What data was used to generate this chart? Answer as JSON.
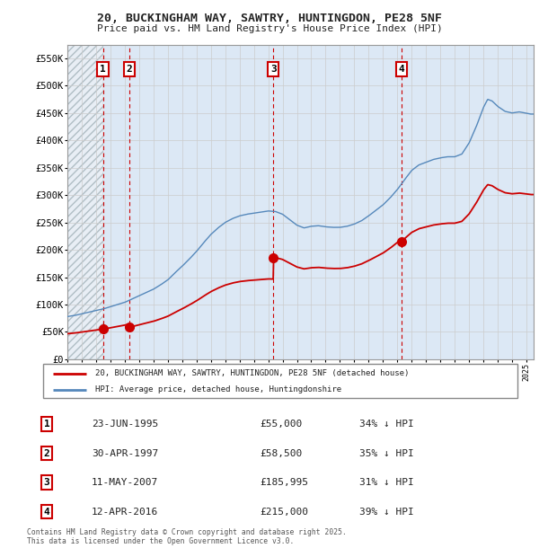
{
  "title1": "20, BUCKINGHAM WAY, SAWTRY, HUNTINGDON, PE28 5NF",
  "title2": "Price paid vs. HM Land Registry's House Price Index (HPI)",
  "ylim": [
    0,
    575000
  ],
  "yticks": [
    0,
    50000,
    100000,
    150000,
    200000,
    250000,
    300000,
    350000,
    400000,
    450000,
    500000,
    550000
  ],
  "ytick_labels": [
    "£0",
    "£50K",
    "£100K",
    "£150K",
    "£200K",
    "£250K",
    "£300K",
    "£350K",
    "£400K",
    "£450K",
    "£500K",
    "£550K"
  ],
  "purchase_dates": [
    1995.478,
    1997.329,
    2007.36,
    2016.278
  ],
  "purchase_prices": [
    55000,
    58500,
    185995,
    215000
  ],
  "purchase_labels": [
    "1",
    "2",
    "3",
    "4"
  ],
  "red_line_color": "#cc0000",
  "blue_line_color": "#5588bb",
  "hatch_fill_color": "#e8eef5",
  "shade_fill_color": "#dce8f5",
  "legend_red_label": "20, BUCKINGHAM WAY, SAWTRY, HUNTINGDON, PE28 5NF (detached house)",
  "legend_blue_label": "HPI: Average price, detached house, Huntingdonshire",
  "table_rows": [
    [
      "1",
      "23-JUN-1995",
      "£55,000",
      "34% ↓ HPI"
    ],
    [
      "2",
      "30-APR-1997",
      "£58,500",
      "35% ↓ HPI"
    ],
    [
      "3",
      "11-MAY-2007",
      "£185,995",
      "31% ↓ HPI"
    ],
    [
      "4",
      "12-APR-2016",
      "£215,000",
      "39% ↓ HPI"
    ]
  ],
  "footnote": "Contains HM Land Registry data © Crown copyright and database right 2025.\nThis data is licensed under the Open Government Licence v3.0.",
  "xmin": 1993.0,
  "xmax": 2025.5,
  "background_color": "#ffffff",
  "hpi_key_years": [
    1993.0,
    1993.5,
    1994.0,
    1994.5,
    1995.0,
    1995.5,
    1996.0,
    1996.5,
    1997.0,
    1997.5,
    1998.0,
    1998.5,
    1999.0,
    1999.5,
    2000.0,
    2000.5,
    2001.0,
    2001.5,
    2002.0,
    2002.5,
    2003.0,
    2003.5,
    2004.0,
    2004.5,
    2005.0,
    2005.5,
    2006.0,
    2006.5,
    2007.0,
    2007.5,
    2008.0,
    2008.5,
    2009.0,
    2009.5,
    2010.0,
    2010.5,
    2011.0,
    2011.5,
    2012.0,
    2012.5,
    2013.0,
    2013.5,
    2014.0,
    2014.5,
    2015.0,
    2015.5,
    2016.0,
    2016.5,
    2017.0,
    2017.5,
    2018.0,
    2018.5,
    2019.0,
    2019.5,
    2020.0,
    2020.5,
    2021.0,
    2021.5,
    2022.0,
    2022.3,
    2022.6,
    2023.0,
    2023.5,
    2024.0,
    2024.5,
    2025.3
  ],
  "hpi_key_values": [
    78000,
    80000,
    83000,
    86000,
    89000,
    92000,
    96000,
    100000,
    104000,
    110000,
    116000,
    122000,
    128000,
    136000,
    145000,
    158000,
    170000,
    183000,
    197000,
    213000,
    228000,
    240000,
    250000,
    257000,
    262000,
    265000,
    267000,
    269000,
    271000,
    270000,
    265000,
    255000,
    245000,
    240000,
    243000,
    244000,
    242000,
    241000,
    241000,
    243000,
    247000,
    253000,
    262000,
    272000,
    282000,
    295000,
    310000,
    328000,
    345000,
    355000,
    360000,
    365000,
    368000,
    370000,
    370000,
    375000,
    395000,
    425000,
    460000,
    475000,
    472000,
    462000,
    453000,
    450000,
    452000,
    448000
  ]
}
